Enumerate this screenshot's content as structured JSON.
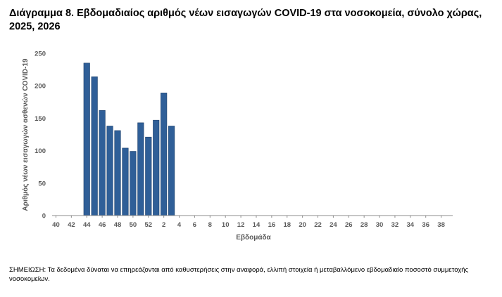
{
  "title": "Διάγραμμα 8. Εβδομαδιαίος αριθμός νέων εισαγωγών COVID-19 στα νοσοκομεία, σύνολο χώρας, 2025, 2026",
  "note": "ΣΗΜΕΙΩΣΗ: Τα δεδομένα δύναται να επηρεάζονται από καθυστερήσεις στην αναφορά, ελλιπή στοιχεία ή μεταβαλλόμενο εβδομαδιαίο ποσοστό συμμετοχής νοσοκομείων.",
  "chart_data": {
    "type": "bar",
    "xlabel": "Εβδομάδα",
    "ylabel": "Αριθμός νέων εισαγωγών ασθενών COVID-19",
    "ylim": [
      0,
      250
    ],
    "yticks": [
      0,
      50,
      100,
      150,
      200,
      250
    ],
    "grid": false,
    "legend": "none",
    "bar_color": "#2F5F98",
    "categories": [
      "40",
      "41",
      "42",
      "43",
      "44",
      "45",
      "46",
      "47",
      "48",
      "49",
      "50",
      "51",
      "52",
      "1",
      "2",
      "3",
      "4",
      "5",
      "6",
      "7",
      "8",
      "9",
      "10",
      "11",
      "12",
      "13",
      "14",
      "15",
      "16",
      "17",
      "18",
      "19",
      "20",
      "21",
      "22",
      "23",
      "24",
      "25",
      "26",
      "27",
      "28",
      "29",
      "30",
      "31",
      "32",
      "33",
      "34",
      "35",
      "36",
      "37",
      "38",
      "39"
    ],
    "tick_labels": [
      "40",
      "42",
      "44",
      "46",
      "48",
      "50",
      "52",
      "2",
      "4",
      "6",
      "8",
      "10",
      "12",
      "14",
      "16",
      "18",
      "20",
      "22",
      "24",
      "26",
      "28",
      "30",
      "32",
      "34",
      "36",
      "38"
    ],
    "values": [
      null,
      null,
      null,
      null,
      235,
      214,
      162,
      138,
      131,
      104,
      99,
      143,
      121,
      147,
      189,
      138,
      null,
      null,
      null,
      null,
      null,
      null,
      null,
      null,
      null,
      null,
      null,
      null,
      null,
      null,
      null,
      null,
      null,
      null,
      null,
      null,
      null,
      null,
      null,
      null,
      null,
      null,
      null,
      null,
      null,
      null,
      null,
      null,
      null,
      null,
      null,
      null
    ]
  }
}
